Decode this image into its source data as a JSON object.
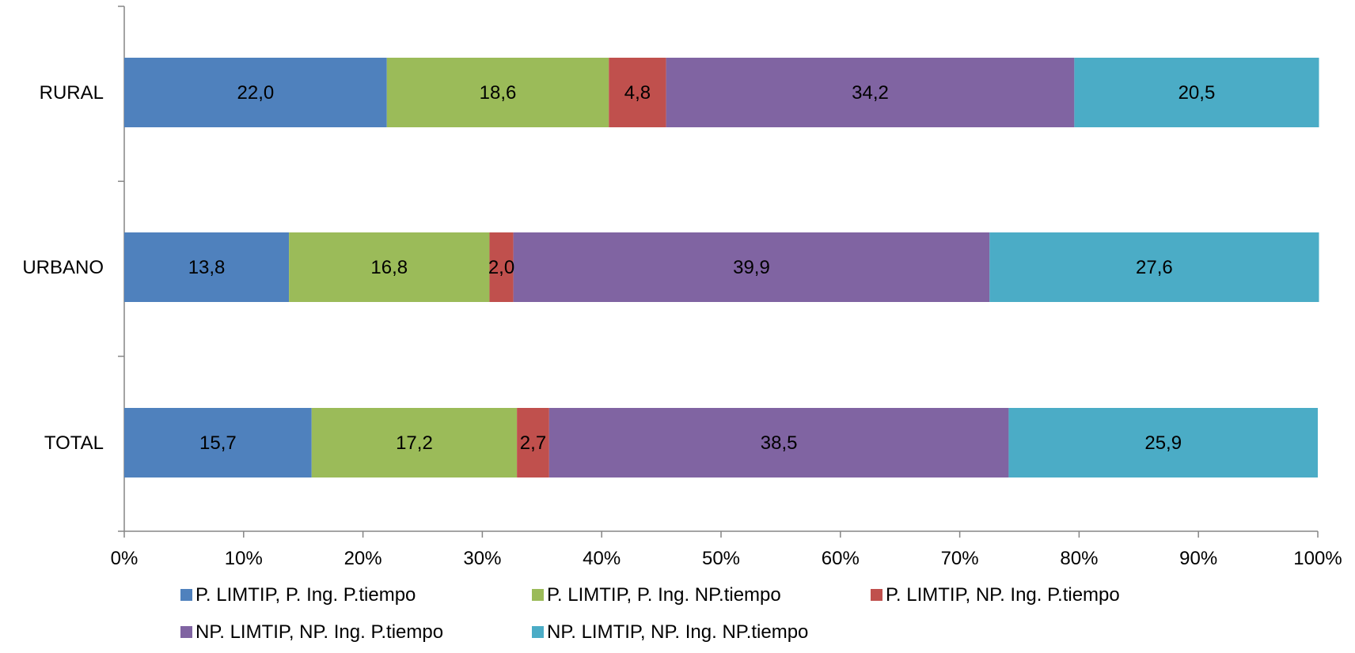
{
  "chart_data": {
    "type": "bar",
    "orientation": "horizontal",
    "stacked": "percent",
    "title": "",
    "xlabel": "",
    "ylabel": "",
    "xlim": [
      0,
      100
    ],
    "grid": false,
    "legend_position": "bottom",
    "categories": [
      "RURAL",
      "URBANO",
      "TOTAL"
    ],
    "x_ticks": [
      "0%",
      "10%",
      "20%",
      "30%",
      "40%",
      "50%",
      "60%",
      "70%",
      "80%",
      "90%",
      "100%"
    ],
    "series": [
      {
        "name": "P. LIMTIP, P. Ing. P.tiempo",
        "color": "#4F81BD",
        "values": [
          22.0,
          13.8,
          15.7
        ],
        "labels": [
          "22,0",
          "13,8",
          "15,7"
        ]
      },
      {
        "name": "P. LIMTIP, P. Ing. NP.tiempo",
        "color": "#9BBB59",
        "values": [
          18.6,
          16.8,
          17.2
        ],
        "labels": [
          "18,6",
          "16,8",
          "17,2"
        ]
      },
      {
        "name": "P. LIMTIP, NP. Ing. P.tiempo",
        "color": "#C0504D",
        "values": [
          4.8,
          2.0,
          2.7
        ],
        "labels": [
          "4,8",
          "2,0",
          "2,7"
        ]
      },
      {
        "name": "NP. LIMTIP, NP. Ing. P.tiempo",
        "color": "#8064A2",
        "values": [
          34.2,
          39.9,
          38.5
        ],
        "labels": [
          "34,2",
          "39,9",
          "38,5"
        ]
      },
      {
        "name": "NP. LIMTIP, NP. Ing. NP.tiempo",
        "color": "#4BACC6",
        "values": [
          20.5,
          27.6,
          25.9
        ],
        "labels": [
          "20,5",
          "27,6",
          "25,9"
        ]
      }
    ]
  }
}
